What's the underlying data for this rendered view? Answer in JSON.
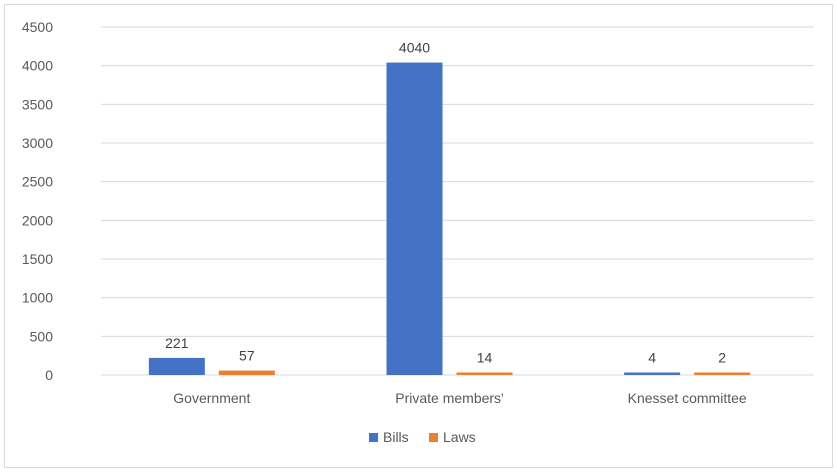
{
  "chart_data": {
    "type": "bar",
    "categories": [
      "Government",
      "Private members'",
      "Knesset committee"
    ],
    "series": [
      {
        "name": "Bills",
        "values": [
          221,
          4040,
          4
        ],
        "color": "#4472C4"
      },
      {
        "name": "Laws",
        "values": [
          57,
          14,
          2
        ],
        "color": "#ED7D31"
      }
    ],
    "ylim": [
      0,
      4500
    ],
    "yticks": [
      0,
      500,
      1000,
      1500,
      2000,
      2500,
      3000,
      3500,
      4000,
      4500
    ],
    "grid": true,
    "legend": "bottom",
    "colors": {
      "gridline": "#d9d9d9",
      "axis": "#d9d9d9"
    }
  }
}
